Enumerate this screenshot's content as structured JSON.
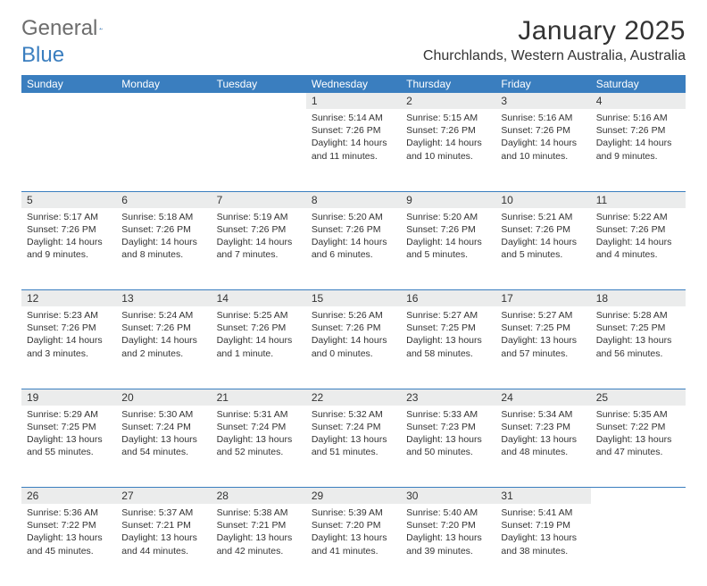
{
  "brand": {
    "part1": "General",
    "part2": "Blue"
  },
  "title": "January 2025",
  "location": "Churchlands, Western Australia, Australia",
  "colors": {
    "accent": "#3a7ebf",
    "header_bg": "#3a7ebf",
    "header_text": "#ffffff",
    "daynum_bg": "#ebecec",
    "text": "#333333",
    "logo_gray": "#6d6d6d"
  },
  "weekdays": [
    "Sunday",
    "Monday",
    "Tuesday",
    "Wednesday",
    "Thursday",
    "Friday",
    "Saturday"
  ],
  "weeks": [
    [
      {
        "n": "",
        "t": ""
      },
      {
        "n": "",
        "t": ""
      },
      {
        "n": "",
        "t": ""
      },
      {
        "n": "1",
        "t": "Sunrise: 5:14 AM\nSunset: 7:26 PM\nDaylight: 14 hours and 11 minutes."
      },
      {
        "n": "2",
        "t": "Sunrise: 5:15 AM\nSunset: 7:26 PM\nDaylight: 14 hours and 10 minutes."
      },
      {
        "n": "3",
        "t": "Sunrise: 5:16 AM\nSunset: 7:26 PM\nDaylight: 14 hours and 10 minutes."
      },
      {
        "n": "4",
        "t": "Sunrise: 5:16 AM\nSunset: 7:26 PM\nDaylight: 14 hours and 9 minutes."
      }
    ],
    [
      {
        "n": "5",
        "t": "Sunrise: 5:17 AM\nSunset: 7:26 PM\nDaylight: 14 hours and 9 minutes."
      },
      {
        "n": "6",
        "t": "Sunrise: 5:18 AM\nSunset: 7:26 PM\nDaylight: 14 hours and 8 minutes."
      },
      {
        "n": "7",
        "t": "Sunrise: 5:19 AM\nSunset: 7:26 PM\nDaylight: 14 hours and 7 minutes."
      },
      {
        "n": "8",
        "t": "Sunrise: 5:20 AM\nSunset: 7:26 PM\nDaylight: 14 hours and 6 minutes."
      },
      {
        "n": "9",
        "t": "Sunrise: 5:20 AM\nSunset: 7:26 PM\nDaylight: 14 hours and 5 minutes."
      },
      {
        "n": "10",
        "t": "Sunrise: 5:21 AM\nSunset: 7:26 PM\nDaylight: 14 hours and 5 minutes."
      },
      {
        "n": "11",
        "t": "Sunrise: 5:22 AM\nSunset: 7:26 PM\nDaylight: 14 hours and 4 minutes."
      }
    ],
    [
      {
        "n": "12",
        "t": "Sunrise: 5:23 AM\nSunset: 7:26 PM\nDaylight: 14 hours and 3 minutes."
      },
      {
        "n": "13",
        "t": "Sunrise: 5:24 AM\nSunset: 7:26 PM\nDaylight: 14 hours and 2 minutes."
      },
      {
        "n": "14",
        "t": "Sunrise: 5:25 AM\nSunset: 7:26 PM\nDaylight: 14 hours and 1 minute."
      },
      {
        "n": "15",
        "t": "Sunrise: 5:26 AM\nSunset: 7:26 PM\nDaylight: 14 hours and 0 minutes."
      },
      {
        "n": "16",
        "t": "Sunrise: 5:27 AM\nSunset: 7:25 PM\nDaylight: 13 hours and 58 minutes."
      },
      {
        "n": "17",
        "t": "Sunrise: 5:27 AM\nSunset: 7:25 PM\nDaylight: 13 hours and 57 minutes."
      },
      {
        "n": "18",
        "t": "Sunrise: 5:28 AM\nSunset: 7:25 PM\nDaylight: 13 hours and 56 minutes."
      }
    ],
    [
      {
        "n": "19",
        "t": "Sunrise: 5:29 AM\nSunset: 7:25 PM\nDaylight: 13 hours and 55 minutes."
      },
      {
        "n": "20",
        "t": "Sunrise: 5:30 AM\nSunset: 7:24 PM\nDaylight: 13 hours and 54 minutes."
      },
      {
        "n": "21",
        "t": "Sunrise: 5:31 AM\nSunset: 7:24 PM\nDaylight: 13 hours and 52 minutes."
      },
      {
        "n": "22",
        "t": "Sunrise: 5:32 AM\nSunset: 7:24 PM\nDaylight: 13 hours and 51 minutes."
      },
      {
        "n": "23",
        "t": "Sunrise: 5:33 AM\nSunset: 7:23 PM\nDaylight: 13 hours and 50 minutes."
      },
      {
        "n": "24",
        "t": "Sunrise: 5:34 AM\nSunset: 7:23 PM\nDaylight: 13 hours and 48 minutes."
      },
      {
        "n": "25",
        "t": "Sunrise: 5:35 AM\nSunset: 7:22 PM\nDaylight: 13 hours and 47 minutes."
      }
    ],
    [
      {
        "n": "26",
        "t": "Sunrise: 5:36 AM\nSunset: 7:22 PM\nDaylight: 13 hours and 45 minutes."
      },
      {
        "n": "27",
        "t": "Sunrise: 5:37 AM\nSunset: 7:21 PM\nDaylight: 13 hours and 44 minutes."
      },
      {
        "n": "28",
        "t": "Sunrise: 5:38 AM\nSunset: 7:21 PM\nDaylight: 13 hours and 42 minutes."
      },
      {
        "n": "29",
        "t": "Sunrise: 5:39 AM\nSunset: 7:20 PM\nDaylight: 13 hours and 41 minutes."
      },
      {
        "n": "30",
        "t": "Sunrise: 5:40 AM\nSunset: 7:20 PM\nDaylight: 13 hours and 39 minutes."
      },
      {
        "n": "31",
        "t": "Sunrise: 5:41 AM\nSunset: 7:19 PM\nDaylight: 13 hours and 38 minutes."
      },
      {
        "n": "",
        "t": ""
      }
    ]
  ]
}
